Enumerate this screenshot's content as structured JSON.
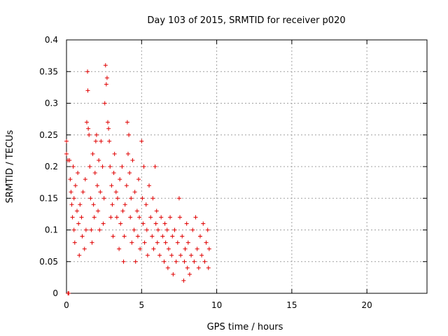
{
  "chart_data": {
    "type": "scatter",
    "title": "Day 103 of 2015, SRMTID for receiver p020",
    "xlabel": "GPS time / hours",
    "ylabel": "SRMTID / TECUs",
    "xlim": [
      0,
      24
    ],
    "ylim": [
      0,
      0.4
    ],
    "xticks": [
      0,
      5,
      10,
      15,
      20
    ],
    "xtick_labels": [
      "0",
      "5",
      "10",
      "15",
      "20"
    ],
    "yticks": [
      0,
      0.05,
      0.1,
      0.15,
      0.2,
      0.25,
      0.3,
      0.35,
      0.4
    ],
    "ytick_labels": [
      "0",
      "0.05",
      "0.1",
      "0.15",
      "0.2",
      "0.25",
      "0.3",
      "0.35",
      "0.4"
    ],
    "grid": true,
    "marker": "plus",
    "color": "#e00000",
    "series": [
      {
        "name": "SRMTID",
        "points": [
          [
            0.0,
            0.24
          ],
          [
            0.0,
            0.22
          ],
          [
            0.1,
            0.0
          ],
          [
            0.15,
            0.0
          ],
          [
            0.1,
            0.21
          ],
          [
            0.2,
            0.21
          ],
          [
            0.25,
            0.18
          ],
          [
            0.3,
            0.16
          ],
          [
            0.35,
            0.14
          ],
          [
            0.4,
            0.12
          ],
          [
            0.45,
            0.2
          ],
          [
            0.5,
            0.15
          ],
          [
            0.5,
            0.1
          ],
          [
            0.55,
            0.08
          ],
          [
            0.6,
            0.17
          ],
          [
            0.7,
            0.13
          ],
          [
            0.75,
            0.19
          ],
          [
            0.8,
            0.11
          ],
          [
            0.85,
            0.06
          ],
          [
            0.9,
            0.14
          ],
          [
            1.0,
            0.12
          ],
          [
            1.05,
            0.09
          ],
          [
            1.1,
            0.16
          ],
          [
            1.2,
            0.07
          ],
          [
            1.25,
            0.18
          ],
          [
            1.3,
            0.1
          ],
          [
            1.35,
            0.27
          ],
          [
            1.4,
            0.35
          ],
          [
            1.42,
            0.32
          ],
          [
            1.45,
            0.26
          ],
          [
            1.5,
            0.25
          ],
          [
            1.55,
            0.2
          ],
          [
            1.6,
            0.15
          ],
          [
            1.65,
            0.1
          ],
          [
            1.7,
            0.08
          ],
          [
            1.75,
            0.22
          ],
          [
            1.8,
            0.14
          ],
          [
            1.85,
            0.12
          ],
          [
            1.9,
            0.19
          ],
          [
            1.95,
            0.24
          ],
          [
            2.0,
            0.25
          ],
          [
            2.05,
            0.17
          ],
          [
            2.1,
            0.13
          ],
          [
            2.15,
            0.21
          ],
          [
            2.2,
            0.1
          ],
          [
            2.25,
            0.16
          ],
          [
            2.3,
            0.24
          ],
          [
            2.4,
            0.2
          ],
          [
            2.45,
            0.11
          ],
          [
            2.5,
            0.15
          ],
          [
            2.55,
            0.3
          ],
          [
            2.6,
            0.36
          ],
          [
            2.65,
            0.33
          ],
          [
            2.7,
            0.34
          ],
          [
            2.75,
            0.27
          ],
          [
            2.8,
            0.26
          ],
          [
            2.85,
            0.24
          ],
          [
            2.9,
            0.2
          ],
          [
            2.95,
            0.12
          ],
          [
            3.0,
            0.17
          ],
          [
            3.05,
            0.14
          ],
          [
            3.1,
            0.09
          ],
          [
            3.15,
            0.19
          ],
          [
            3.2,
            0.22
          ],
          [
            3.3,
            0.16
          ],
          [
            3.35,
            0.12
          ],
          [
            3.4,
            0.15
          ],
          [
            3.5,
            0.07
          ],
          [
            3.55,
            0.18
          ],
          [
            3.6,
            0.11
          ],
          [
            3.7,
            0.2
          ],
          [
            3.75,
            0.13
          ],
          [
            3.8,
            0.05
          ],
          [
            3.85,
            0.09
          ],
          [
            3.9,
            0.14
          ],
          [
            4.0,
            0.17
          ],
          [
            4.05,
            0.27
          ],
          [
            4.1,
            0.22
          ],
          [
            4.15,
            0.25
          ],
          [
            4.2,
            0.19
          ],
          [
            4.25,
            0.12
          ],
          [
            4.3,
            0.15
          ],
          [
            4.35,
            0.08
          ],
          [
            4.4,
            0.21
          ],
          [
            4.5,
            0.1
          ],
          [
            4.55,
            0.16
          ],
          [
            4.6,
            0.05
          ],
          [
            4.7,
            0.13
          ],
          [
            4.75,
            0.09
          ],
          [
            4.8,
            0.18
          ],
          [
            4.85,
            0.12
          ],
          [
            4.9,
            0.07
          ],
          [
            5.0,
            0.24
          ],
          [
            5.05,
            0.15
          ],
          [
            5.1,
            0.11
          ],
          [
            5.15,
            0.2
          ],
          [
            5.2,
            0.08
          ],
          [
            5.3,
            0.14
          ],
          [
            5.35,
            0.1
          ],
          [
            5.4,
            0.06
          ],
          [
            5.5,
            0.17
          ],
          [
            5.6,
            0.12
          ],
          [
            5.7,
            0.09
          ],
          [
            5.75,
            0.15
          ],
          [
            5.8,
            0.07
          ],
          [
            5.9,
            0.2
          ],
          [
            5.95,
            0.11
          ],
          [
            6.0,
            0.13
          ],
          [
            6.05,
            0.08
          ],
          [
            6.1,
            0.1
          ],
          [
            6.2,
            0.06
          ],
          [
            6.3,
            0.12
          ],
          [
            6.4,
            0.09
          ],
          [
            6.5,
            0.05
          ],
          [
            6.55,
            0.11
          ],
          [
            6.6,
            0.08
          ],
          [
            6.7,
            0.1
          ],
          [
            6.75,
            0.04
          ],
          [
            6.8,
            0.07
          ],
          [
            6.9,
            0.12
          ],
          [
            7.0,
            0.06
          ],
          [
            7.05,
            0.09
          ],
          [
            7.1,
            0.03
          ],
          [
            7.2,
            0.1
          ],
          [
            7.3,
            0.05
          ],
          [
            7.4,
            0.08
          ],
          [
            7.5,
            0.15
          ],
          [
            7.55,
            0.12
          ],
          [
            7.6,
            0.06
          ],
          [
            7.7,
            0.09
          ],
          [
            7.8,
            0.02
          ],
          [
            7.85,
            0.05
          ],
          [
            7.9,
            0.07
          ],
          [
            8.0,
            0.11
          ],
          [
            8.05,
            0.04
          ],
          [
            8.1,
            0.08
          ],
          [
            8.2,
            0.03
          ],
          [
            8.3,
            0.06
          ],
          [
            8.4,
            0.1
          ],
          [
            8.5,
            0.05
          ],
          [
            8.6,
            0.12
          ],
          [
            8.7,
            0.07
          ],
          [
            8.8,
            0.04
          ],
          [
            8.9,
            0.09
          ],
          [
            9.0,
            0.06
          ],
          [
            9.1,
            0.11
          ],
          [
            9.2,
            0.05
          ],
          [
            9.3,
            0.08
          ],
          [
            9.4,
            0.1
          ],
          [
            9.45,
            0.04
          ],
          [
            9.5,
            0.07
          ]
        ]
      }
    ]
  }
}
